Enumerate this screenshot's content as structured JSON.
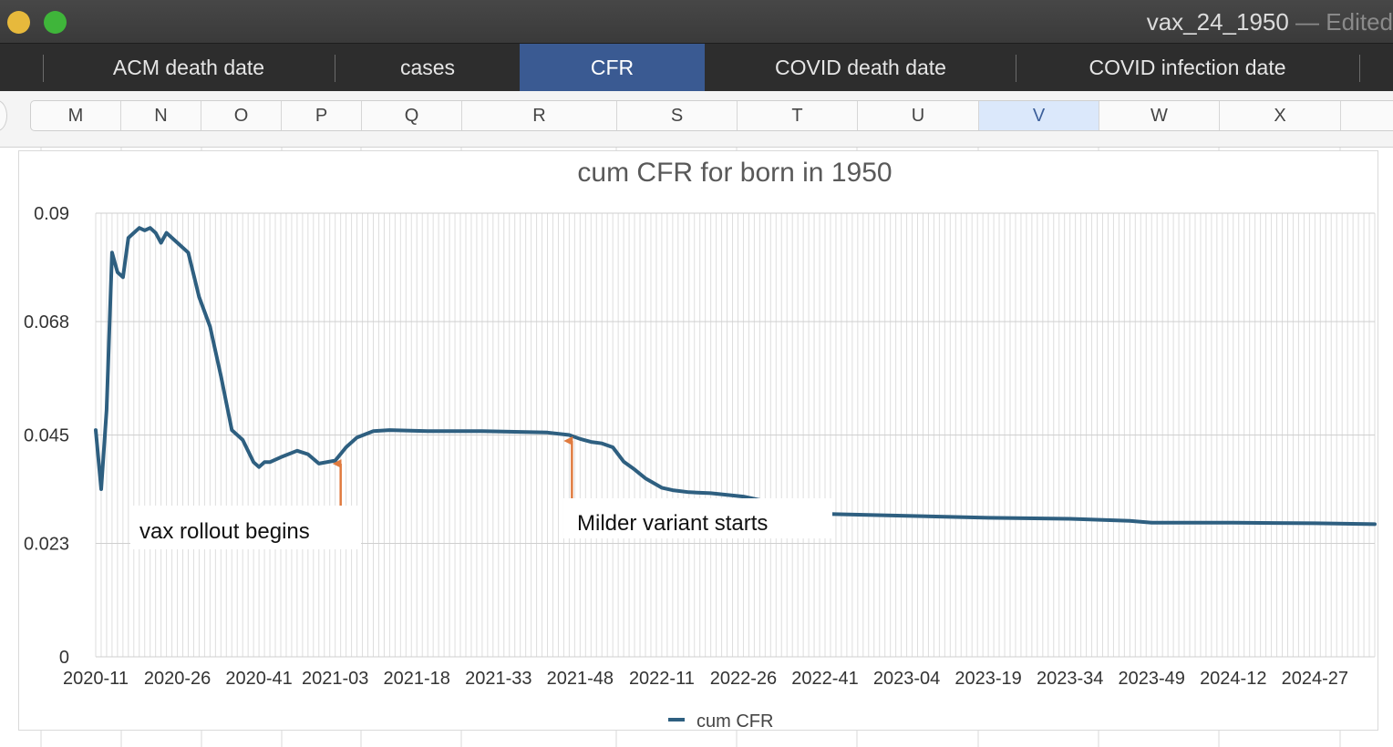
{
  "window": {
    "title": "vax_24_1950",
    "state": " — Edited"
  },
  "tabs": [
    {
      "label": "ACM death date",
      "active": false
    },
    {
      "label": "cases",
      "active": false
    },
    {
      "label": "CFR",
      "active": true
    },
    {
      "label": "COVID death date",
      "active": false
    },
    {
      "label": "COVID infection date",
      "active": false
    }
  ],
  "columns": [
    "M",
    "N",
    "O",
    "P",
    "Q",
    "R",
    "S",
    "T",
    "U",
    "V",
    "W",
    "X"
  ],
  "selected_column": "V",
  "colors": {
    "line": "#2e5f80",
    "arrow": "#e07b3f",
    "active_tab": "#3a5a92"
  },
  "chart_data": {
    "type": "line",
    "title": "cum CFR for born in 1950",
    "xlabel": "",
    "ylabel": "",
    "ylim": [
      0,
      0.09
    ],
    "yticks": [
      "0",
      "0.023",
      "0.045",
      "0.068",
      "0.09"
    ],
    "xticks": [
      "2020-11",
      "2020-26",
      "2020-41",
      "2021-03",
      "2021-18",
      "2021-33",
      "2021-48",
      "2022-11",
      "2022-26",
      "2022-41",
      "2023-04",
      "2023-19",
      "2023-34",
      "2023-49",
      "2024-12",
      "2024-27"
    ],
    "grid": true,
    "legend": {
      "position": "bottom",
      "entries": [
        "cum CFR"
      ]
    },
    "series": [
      {
        "name": "cum CFR",
        "x": [
          "2020-11",
          "2020-12",
          "2020-13",
          "2020-14",
          "2020-15",
          "2020-16",
          "2020-17",
          "2020-18",
          "2020-19",
          "2020-20",
          "2020-21",
          "2020-22",
          "2020-23",
          "2020-24",
          "2020-26",
          "2020-28",
          "2020-30",
          "2020-32",
          "2020-34",
          "2020-36",
          "2020-38",
          "2020-40",
          "2020-41",
          "2020-42",
          "2020-43",
          "2020-45",
          "2020-48",
          "2020-50",
          "2020-52",
          "2021-03",
          "2021-05",
          "2021-07",
          "2021-10",
          "2021-13",
          "2021-16",
          "2021-20",
          "2021-30",
          "2021-42",
          "2021-46",
          "2021-48",
          "2021-50",
          "2021-52",
          "2022-02",
          "2022-04",
          "2022-06",
          "2022-08",
          "2022-11",
          "2022-13",
          "2022-16",
          "2022-20",
          "2022-26",
          "2022-41",
          "2023-04",
          "2023-19",
          "2023-34",
          "2023-45",
          "2023-49",
          "2024-12",
          "2024-27",
          "2024-38"
        ],
        "values": [
          0.046,
          0.034,
          0.05,
          0.082,
          0.078,
          0.077,
          0.085,
          0.086,
          0.087,
          0.0865,
          0.087,
          0.086,
          0.084,
          0.086,
          0.084,
          0.082,
          0.073,
          0.067,
          0.057,
          0.046,
          0.044,
          0.0395,
          0.0385,
          0.0395,
          0.0395,
          0.0405,
          0.0418,
          0.0411,
          0.0392,
          0.0398,
          0.0425,
          0.0445,
          0.0458,
          0.046,
          0.0459,
          0.0458,
          0.0458,
          0.0455,
          0.045,
          0.0442,
          0.0436,
          0.0433,
          0.0425,
          0.0396,
          0.038,
          0.0362,
          0.0343,
          0.0338,
          0.0334,
          0.0332,
          0.0325,
          0.029,
          0.0286,
          0.0282,
          0.028,
          0.0276,
          0.0272,
          0.0272,
          0.0271,
          0.0269
        ]
      }
    ],
    "annotations": [
      {
        "text": "vax rollout begins",
        "x": "2021-03"
      },
      {
        "text": "Milder variant starts",
        "x": "2021-48"
      }
    ]
  }
}
